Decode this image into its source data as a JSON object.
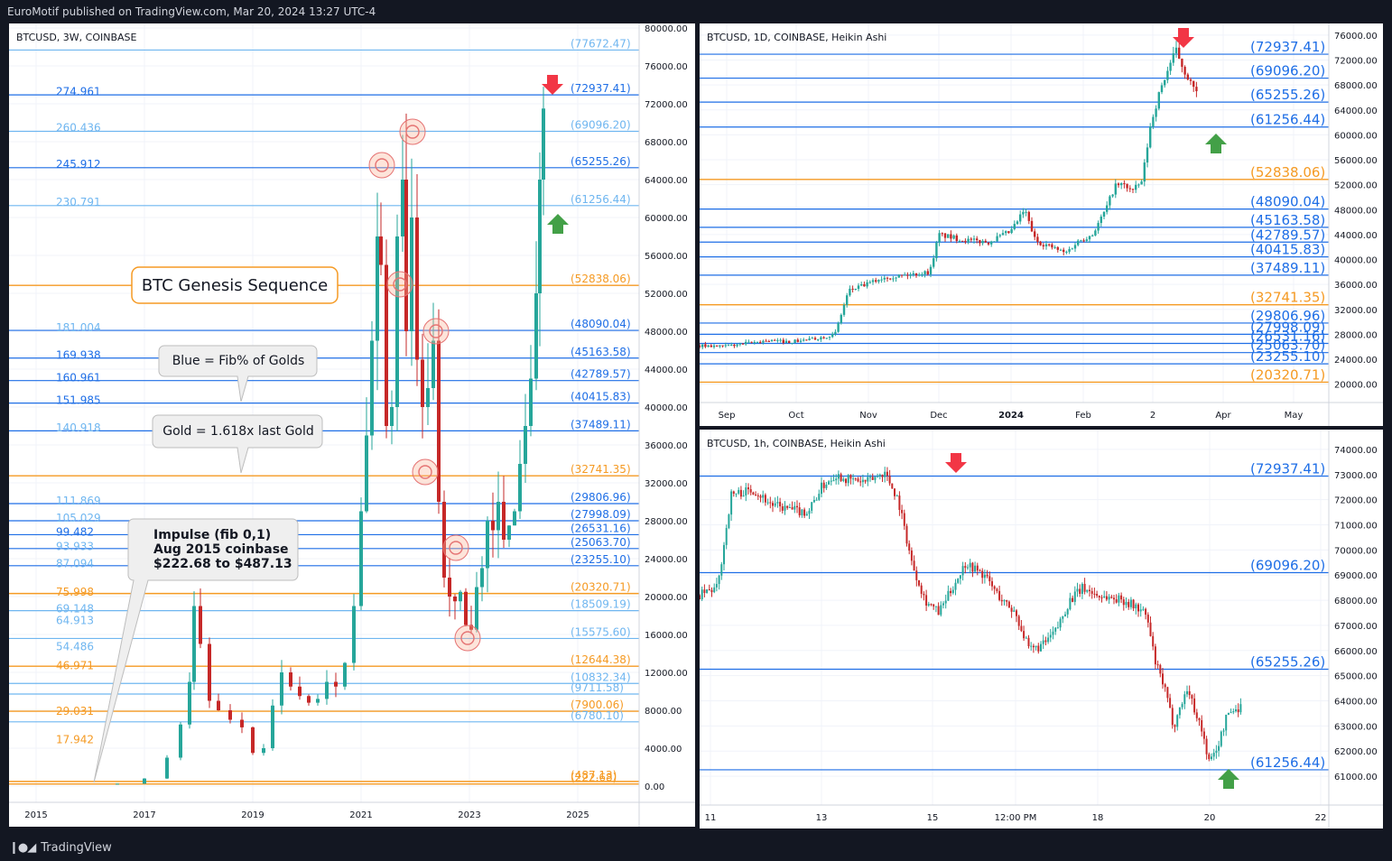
{
  "header": {
    "publisher": "EuroMotif published on TradingView.com, Mar 20, 2024 13:27 UTC-4"
  },
  "footer": {
    "brand": "TradingView",
    "logo_icon": "tradingview-logo-icon"
  },
  "colors": {
    "blue": "#1e6ee6",
    "light_blue": "#6fb6f0",
    "gold": "#f59a23",
    "up": "#26a69a",
    "down": "#c62828",
    "grid": "#f0f3fa"
  },
  "chart_data": [
    {
      "id": "main",
      "type": "candlestick",
      "symbol": "BTCUSD, 3W, COINBASE",
      "x_ticks": [
        "2015",
        "2017",
        "2019",
        "2021",
        "2023",
        "2025"
      ],
      "y_ticks": [
        "80000.00",
        "76000.00",
        "72000.00",
        "68000.00",
        "64000.00",
        "60000.00",
        "56000.00",
        "52000.00",
        "48000.00",
        "44000.00",
        "40000.00",
        "36000.00",
        "32000.00",
        "28000.00",
        "24000.00",
        "20000.00",
        "16000.00",
        "12000.00",
        "8000.00",
        "4000.00",
        "0.00"
      ],
      "ylim": [
        0,
        80000
      ],
      "left_labels": [
        {
          "text": "274.961",
          "price": 73300,
          "color": "blue"
        },
        {
          "text": "260.436",
          "price": 69500,
          "color": "light_blue"
        },
        {
          "text": "245.912",
          "price": 65600,
          "color": "blue"
        },
        {
          "text": "230.791",
          "price": 61600,
          "color": "light_blue"
        },
        {
          "text": "181.004",
          "price": 48400,
          "color": "light_blue"
        },
        {
          "text": "169.938",
          "price": 45500,
          "color": "blue"
        },
        {
          "text": "160.961",
          "price": 43100,
          "color": "blue"
        },
        {
          "text": "151.985",
          "price": 40700,
          "color": "blue"
        },
        {
          "text": "140.918",
          "price": 37800,
          "color": "light_blue"
        },
        {
          "text": "111.869",
          "price": 30100,
          "color": "light_blue"
        },
        {
          "text": "105.029",
          "price": 28300,
          "color": "light_blue"
        },
        {
          "text": "99.482",
          "price": 26800,
          "color": "blue"
        },
        {
          "text": "93.933",
          "price": 25300,
          "color": "light_blue"
        },
        {
          "text": "87.094",
          "price": 23500,
          "color": "light_blue"
        },
        {
          "text": "75.998",
          "price": 20500,
          "color": "gold"
        },
        {
          "text": "69.148",
          "price": 18700,
          "color": "light_blue"
        },
        {
          "text": "64.913",
          "price": 17500,
          "color": "light_blue"
        },
        {
          "text": "54.486",
          "price": 14700,
          "color": "light_blue"
        },
        {
          "text": "46.971",
          "price": 12700,
          "color": "gold"
        },
        {
          "text": "29.031",
          "price": 7900,
          "color": "gold"
        },
        {
          "text": "17.942",
          "price": 4900,
          "color": "gold"
        }
      ],
      "right_levels": [
        {
          "text": "(77672.47)",
          "price": 77672.47,
          "color": "light_blue"
        },
        {
          "text": "(72937.41)",
          "price": 72937.41,
          "color": "blue"
        },
        {
          "text": "(69096.20)",
          "price": 69096.2,
          "color": "light_blue"
        },
        {
          "text": "(65255.26)",
          "price": 65255.26,
          "color": "blue"
        },
        {
          "text": "(61256.44)",
          "price": 61256.44,
          "color": "light_blue"
        },
        {
          "text": "(52838.06)",
          "price": 52838.06,
          "color": "gold"
        },
        {
          "text": "(48090.04)",
          "price": 48090.04,
          "color": "blue"
        },
        {
          "text": "(45163.58)",
          "price": 45163.58,
          "color": "blue"
        },
        {
          "text": "(42789.57)",
          "price": 42789.57,
          "color": "blue"
        },
        {
          "text": "(40415.83)",
          "price": 40415.83,
          "color": "blue"
        },
        {
          "text": "(37489.11)",
          "price": 37489.11,
          "color": "blue"
        },
        {
          "text": "(32741.35)",
          "price": 32741.35,
          "color": "gold"
        },
        {
          "text": "(29806.96)",
          "price": 29806.96,
          "color": "blue"
        },
        {
          "text": "(27998.09)",
          "price": 27998.09,
          "color": "blue"
        },
        {
          "text": "(26531.16)",
          "price": 26531.16,
          "color": "blue"
        },
        {
          "text": "(25063.70)",
          "price": 25063.7,
          "color": "blue"
        },
        {
          "text": "(23255.10)",
          "price": 23255.1,
          "color": "blue"
        },
        {
          "text": "(20320.71)",
          "price": 20320.71,
          "color": "gold"
        },
        {
          "text": "(18509.19)",
          "price": 18509.19,
          "color": "light_blue"
        },
        {
          "text": "(15575.60)",
          "price": 15575.6,
          "color": "light_blue"
        },
        {
          "text": "(12644.38)",
          "price": 12644.38,
          "color": "gold"
        },
        {
          "text": "(10832.34)",
          "price": 10832.34,
          "color": "light_blue"
        },
        {
          "text": "(9711.58)",
          "price": 9711.58,
          "color": "light_blue"
        },
        {
          "text": "(7900.06)",
          "price": 7900.06,
          "color": "gold"
        },
        {
          "text": "(6780.10)",
          "price": 6780.1,
          "color": "light_blue"
        },
        {
          "text": "(487.13)",
          "price": 487.13,
          "color": "gold"
        },
        {
          "text": "(222.68)",
          "price": 222.68,
          "color": "gold"
        }
      ],
      "annotations": {
        "genesis": "BTC Genesis Sequence",
        "blue_note": "Blue = Fib% of Golds",
        "gold_note": "Gold = 1.618x last Gold",
        "impulse_line1": "Impulse (fib 0,1)",
        "impulse_line2": "Aug 2015 coinbase",
        "impulse_line3": "$222.68 to $487.13"
      },
      "icons": [
        "down-arrow-icon",
        "up-arrow-icon",
        "circle-marker-icon"
      ]
    },
    {
      "id": "daily",
      "type": "candlestick",
      "symbol": "BTCUSD, 1D, COINBASE, Heikin Ashi",
      "x_ticks": [
        "Sep",
        "Oct",
        "Nov",
        "Dec",
        "2024",
        "Feb",
        "2",
        "Apr",
        "May"
      ],
      "y_ticks": [
        "76000.00",
        "72000.00",
        "68000.00",
        "64000.00",
        "60000.00",
        "56000.00",
        "52000.00",
        "48000.00",
        "44000.00",
        "40000.00",
        "36000.00",
        "32000.00",
        "28000.00",
        "24000.00",
        "20000.00"
      ],
      "ylim": [
        18500,
        77000
      ],
      "levels": [
        {
          "text": "(72937.41)",
          "price": 72937.41,
          "color": "blue"
        },
        {
          "text": "(69096.20)",
          "price": 69096.2,
          "color": "blue"
        },
        {
          "text": "(65255.26)",
          "price": 65255.26,
          "color": "blue"
        },
        {
          "text": "(61256.44)",
          "price": 61256.44,
          "color": "blue"
        },
        {
          "text": "(52838.06)",
          "price": 52838.06,
          "color": "gold"
        },
        {
          "text": "(48090.04)",
          "price": 48090.04,
          "color": "blue"
        },
        {
          "text": "(45163.58)",
          "price": 45163.58,
          "color": "blue"
        },
        {
          "text": "(42789.57)",
          "price": 42789.57,
          "color": "blue"
        },
        {
          "text": "(40415.83)",
          "price": 40415.83,
          "color": "blue"
        },
        {
          "text": "(37489.11)",
          "price": 37489.11,
          "color": "blue"
        },
        {
          "text": "(32741.35)",
          "price": 32741.35,
          "color": "gold"
        },
        {
          "text": "(29806.96)",
          "price": 29806.96,
          "color": "blue"
        },
        {
          "text": "(27998.09)",
          "price": 27998.09,
          "color": "blue"
        },
        {
          "text": "(26531.16)",
          "price": 26531.16,
          "color": "blue"
        },
        {
          "text": "(25063.70)",
          "price": 25063.7,
          "color": "blue"
        },
        {
          "text": "(23255.10)",
          "price": 23255.1,
          "color": "blue"
        },
        {
          "text": "(20320.71)",
          "price": 20320.71,
          "color": "gold"
        }
      ]
    },
    {
      "id": "hourly",
      "type": "candlestick",
      "symbol": "BTCUSD, 1h, COINBASE, Heikin Ashi",
      "x_ticks": [
        "11",
        "13",
        "15",
        "12:00 PM",
        "18",
        "20",
        "22"
      ],
      "y_ticks": [
        "74000.00",
        "73000.00",
        "72000.00",
        "71000.00",
        "70000.00",
        "69000.00",
        "68000.00",
        "67000.00",
        "66000.00",
        "65000.00",
        "64000.00",
        "63000.00",
        "62000.00",
        "61000.00"
      ],
      "ylim": [
        60500,
        74500
      ],
      "levels": [
        {
          "text": "(72937.41)",
          "price": 72937.41,
          "color": "blue"
        },
        {
          "text": "(69096.20)",
          "price": 69096.2,
          "color": "blue"
        },
        {
          "text": "(65255.26)",
          "price": 65255.26,
          "color": "blue"
        },
        {
          "text": "(61256.44)",
          "price": 61256.44,
          "color": "blue"
        }
      ]
    }
  ]
}
